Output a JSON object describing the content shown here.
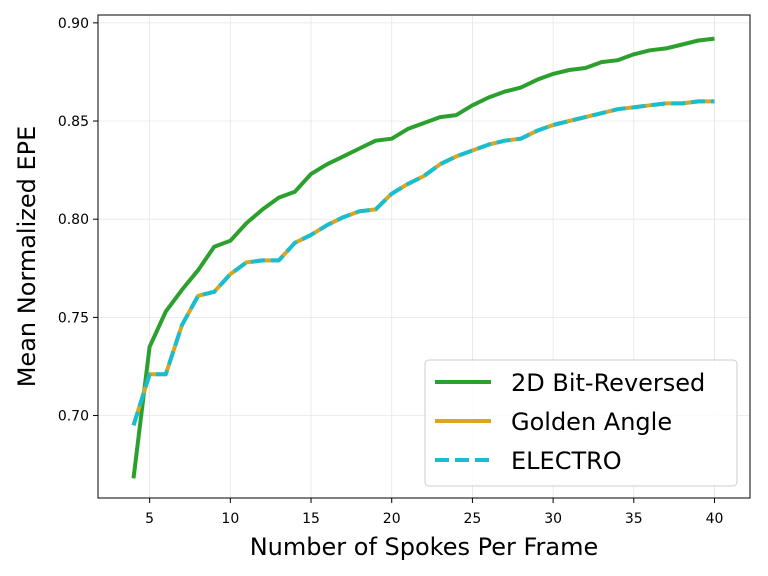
{
  "chart_data": {
    "type": "line",
    "title": "",
    "xlabel": "Number of Spokes Per Frame",
    "ylabel": "Mean Normalized EPE",
    "xlim": [
      1.8,
      42.2
    ],
    "ylim": [
      0.658,
      0.904
    ],
    "xticks": [
      5,
      10,
      15,
      20,
      25,
      30,
      35,
      40
    ],
    "xtick_labels": [
      "5",
      "10",
      "15",
      "20",
      "25",
      "30",
      "35",
      "40"
    ],
    "yticks": [
      0.7,
      0.75,
      0.8,
      0.85,
      0.9
    ],
    "ytick_labels": [
      "0.70",
      "0.75",
      "0.80",
      "0.85",
      "0.90"
    ],
    "grid": true,
    "legend_position": "bottom-right",
    "x": [
      4,
      5,
      6,
      7,
      8,
      9,
      10,
      11,
      12,
      13,
      14,
      15,
      16,
      17,
      18,
      19,
      20,
      21,
      22,
      23,
      24,
      25,
      26,
      27,
      28,
      29,
      30,
      31,
      32,
      33,
      34,
      35,
      36,
      37,
      38,
      39,
      40
    ],
    "series": [
      {
        "name": "2D Bit-Reversed",
        "color": "#2ca02c",
        "dash": "solid",
        "values": [
          0.668,
          0.735,
          0.753,
          0.764,
          0.774,
          0.786,
          0.789,
          0.798,
          0.805,
          0.811,
          0.814,
          0.823,
          0.828,
          0.832,
          0.836,
          0.84,
          0.841,
          0.846,
          0.849,
          0.852,
          0.853,
          0.858,
          0.862,
          0.865,
          0.867,
          0.871,
          0.874,
          0.876,
          0.877,
          0.88,
          0.881,
          0.884,
          0.886,
          0.887,
          0.889,
          0.891,
          0.892
        ]
      },
      {
        "name": "Golden Angle",
        "color": "#daa520",
        "dash": "solid",
        "values": [
          0.695,
          0.721,
          0.721,
          0.746,
          0.761,
          0.763,
          0.772,
          0.778,
          0.779,
          0.779,
          0.788,
          0.792,
          0.797,
          0.801,
          0.804,
          0.805,
          0.813,
          0.818,
          0.822,
          0.828,
          0.832,
          0.835,
          0.838,
          0.84,
          0.841,
          0.845,
          0.848,
          0.85,
          0.852,
          0.854,
          0.856,
          0.857,
          0.858,
          0.859,
          0.859,
          0.86,
          0.86
        ]
      },
      {
        "name": "ELECTRO",
        "color": "#17becf",
        "dash": "dashed",
        "values": [
          0.695,
          0.721,
          0.721,
          0.746,
          0.761,
          0.763,
          0.772,
          0.778,
          0.779,
          0.779,
          0.788,
          0.792,
          0.797,
          0.801,
          0.804,
          0.805,
          0.813,
          0.818,
          0.822,
          0.828,
          0.832,
          0.835,
          0.838,
          0.84,
          0.841,
          0.845,
          0.848,
          0.85,
          0.852,
          0.854,
          0.856,
          0.857,
          0.858,
          0.859,
          0.859,
          0.86,
          0.86
        ]
      }
    ]
  }
}
